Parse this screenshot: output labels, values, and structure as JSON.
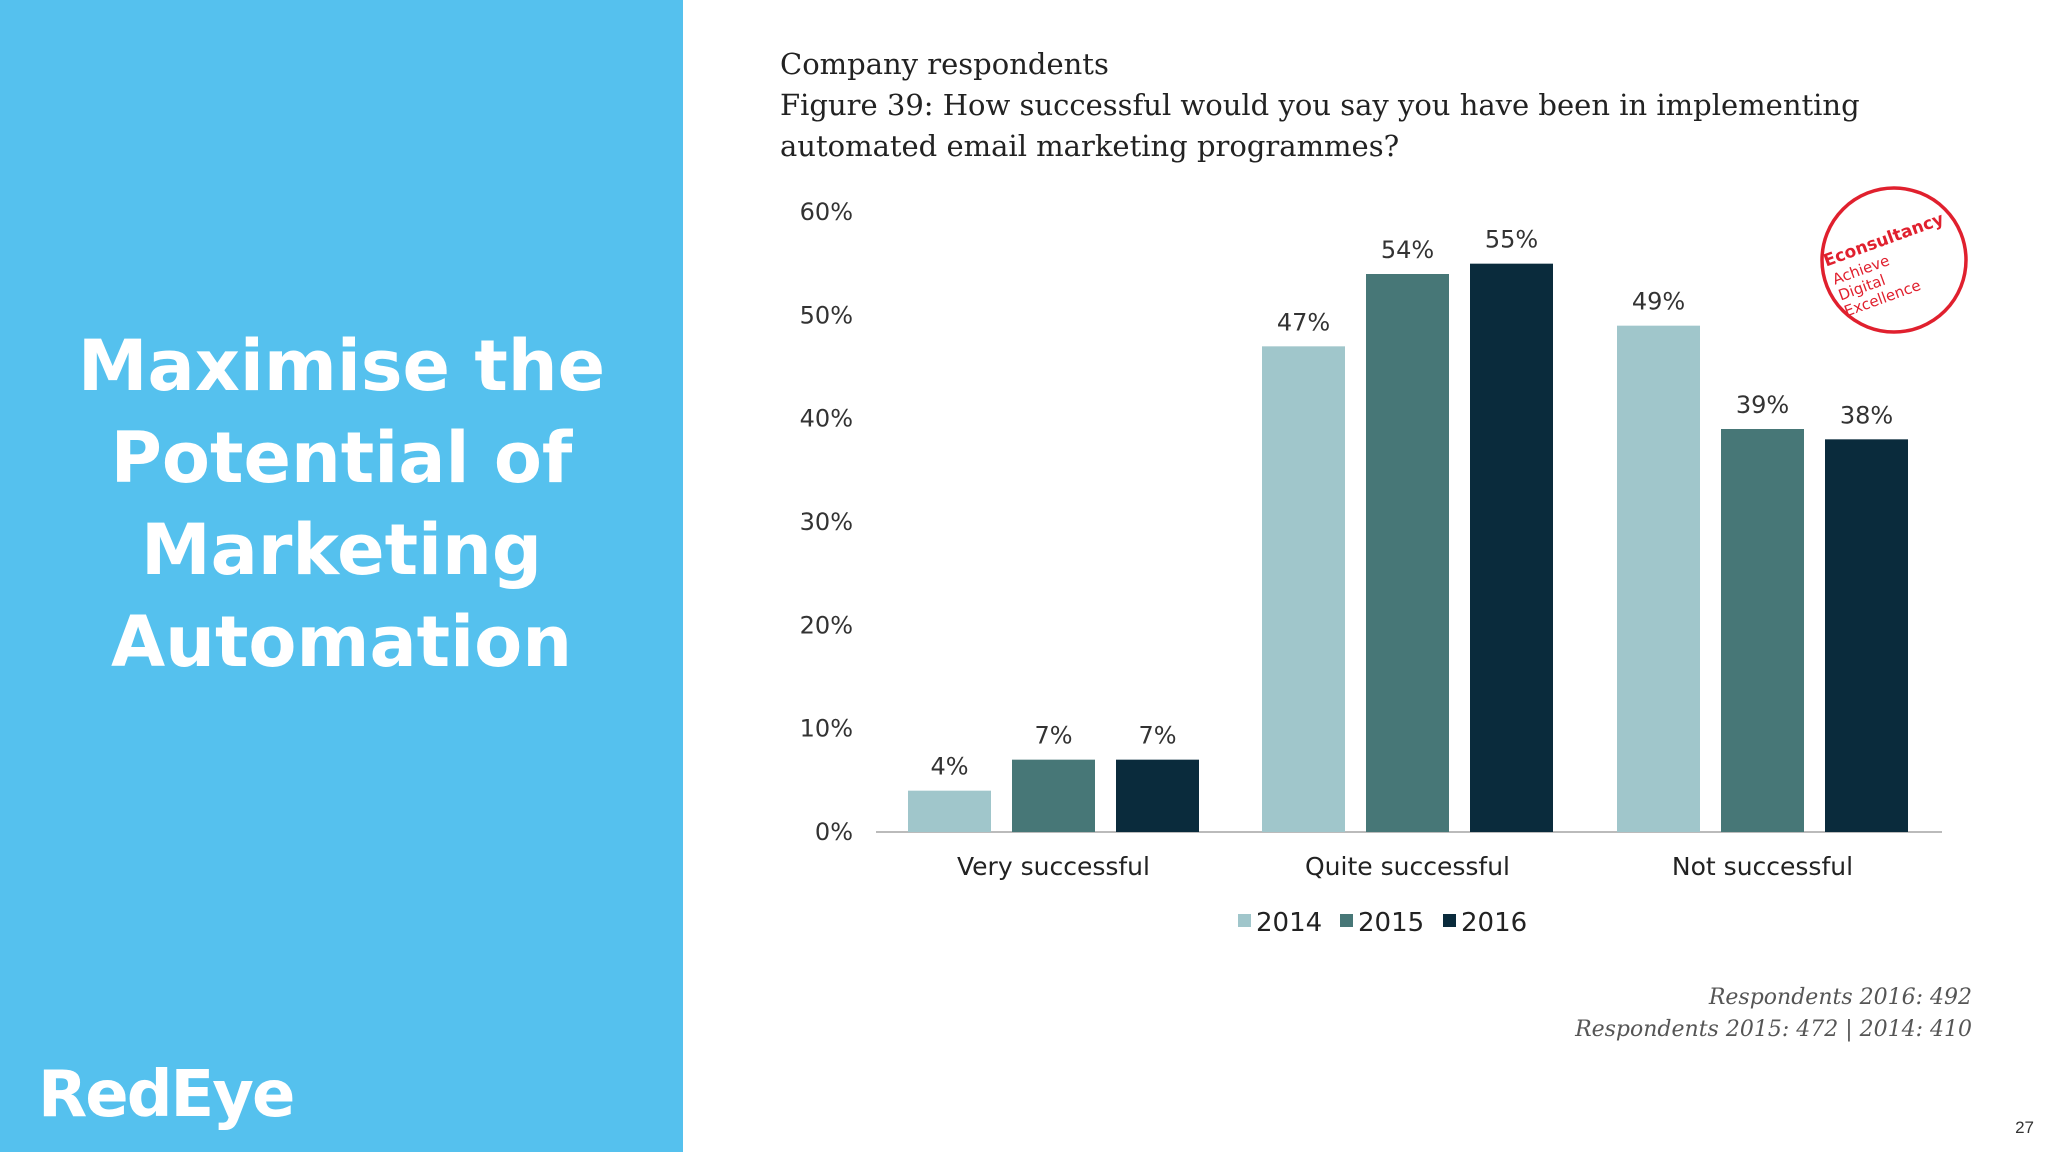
{
  "slide": {
    "headline_lines": [
      "Maximise the",
      "Potential of",
      "Marketing",
      "Automation"
    ],
    "logo": "RedEye",
    "page_number": "27",
    "colors": {
      "panel": "#55c1ee",
      "text_light": "#ffffff"
    }
  },
  "figure": {
    "header": "Company respondents",
    "title_lines": [
      "Figure 39: How successful would you say you have been in implementing",
      "automated email marketing programmes?"
    ],
    "respondents_lines": [
      "Respondents 2016: 492",
      "Respondents 2015: 472 | 2014: 410"
    ],
    "badge": {
      "brand": "Econsultancy",
      "tagline_lines": [
        "Achieve",
        "Digital",
        "Excellence"
      ],
      "color": "#e0202e"
    }
  },
  "chart_data": {
    "type": "bar",
    "categories": [
      "Very successful",
      "Quite successful",
      "Not successful"
    ],
    "series": [
      {
        "name": "2014",
        "values": [
          4,
          47,
          49
        ],
        "color": "#a0c6cb"
      },
      {
        "name": "2015",
        "values": [
          7,
          54,
          39
        ],
        "color": "#477777"
      },
      {
        "name": "2016",
        "values": [
          7,
          55,
          38
        ],
        "color": "#0a2b3c"
      }
    ],
    "data_labels": [
      [
        "4%",
        "47%",
        "49%"
      ],
      [
        "7%",
        "54%",
        "39%"
      ],
      [
        "7%",
        "55%",
        "38%"
      ]
    ],
    "y_ticks": [
      "0%",
      "10%",
      "20%",
      "30%",
      "40%",
      "50%",
      "60%"
    ],
    "ylim": [
      0,
      60
    ],
    "grid": false,
    "legend": "bottom"
  }
}
